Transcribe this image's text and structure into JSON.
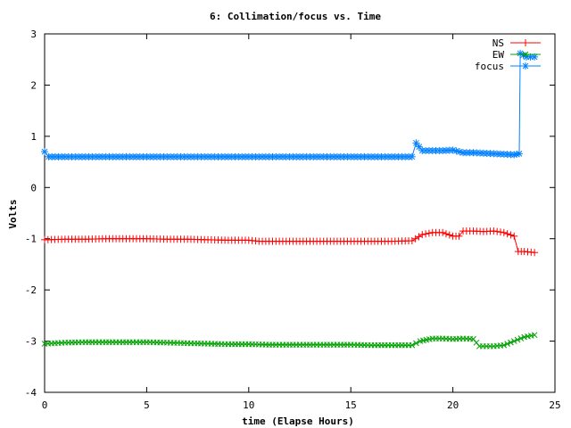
{
  "chart_data": {
    "type": "line",
    "title": "6: Collimation/focus vs. Time",
    "xlabel": "time (Elapse Hours)",
    "ylabel": "Volts",
    "xlim": [
      0,
      25
    ],
    "ylim": [
      -4,
      3
    ],
    "xticks": [
      0,
      5,
      10,
      15,
      20,
      25
    ],
    "yticks": [
      -4,
      -3,
      -2,
      -1,
      0,
      1,
      2,
      3
    ],
    "grid": false,
    "legend_position": "top-right",
    "series": [
      {
        "name": "NS",
        "color": "#ff0000",
        "marker": "plus",
        "points": [
          [
            0,
            -1.02
          ],
          [
            1,
            -1.01
          ],
          [
            2,
            -1.01
          ],
          [
            3,
            -1.0
          ],
          [
            4,
            -1.0
          ],
          [
            5,
            -1.0
          ],
          [
            6,
            -1.01
          ],
          [
            7,
            -1.01
          ],
          [
            8,
            -1.02
          ],
          [
            9,
            -1.03
          ],
          [
            10,
            -1.03
          ],
          [
            10.5,
            -1.05
          ],
          [
            11,
            -1.05
          ],
          [
            12,
            -1.05
          ],
          [
            13,
            -1.05
          ],
          [
            14,
            -1.05
          ],
          [
            15,
            -1.05
          ],
          [
            16,
            -1.05
          ],
          [
            17,
            -1.05
          ],
          [
            18,
            -1.04
          ],
          [
            18.5,
            -0.92
          ],
          [
            19,
            -0.88
          ],
          [
            19.5,
            -0.88
          ],
          [
            20,
            -0.95
          ],
          [
            20.3,
            -0.95
          ],
          [
            20.5,
            -0.85
          ],
          [
            21,
            -0.85
          ],
          [
            21.5,
            -0.86
          ],
          [
            22,
            -0.85
          ],
          [
            22.5,
            -0.88
          ],
          [
            23,
            -0.95
          ],
          [
            23.2,
            -1.25
          ],
          [
            23.5,
            -1.25
          ],
          [
            24,
            -1.27
          ]
        ]
      },
      {
        "name": "EW",
        "color": "#00a000",
        "marker": "x",
        "points": [
          [
            0,
            -3.05
          ],
          [
            1,
            -3.03
          ],
          [
            2,
            -3.02
          ],
          [
            3,
            -3.02
          ],
          [
            4,
            -3.02
          ],
          [
            5,
            -3.02
          ],
          [
            6,
            -3.03
          ],
          [
            7,
            -3.04
          ],
          [
            8,
            -3.05
          ],
          [
            9,
            -3.06
          ],
          [
            10,
            -3.06
          ],
          [
            11,
            -3.07
          ],
          [
            12,
            -3.07
          ],
          [
            13,
            -3.07
          ],
          [
            14,
            -3.07
          ],
          [
            15,
            -3.07
          ],
          [
            16,
            -3.08
          ],
          [
            17,
            -3.08
          ],
          [
            18,
            -3.08
          ],
          [
            18.4,
            -3.0
          ],
          [
            19,
            -2.95
          ],
          [
            19.5,
            -2.95
          ],
          [
            20,
            -2.96
          ],
          [
            20.5,
            -2.95
          ],
          [
            21,
            -2.96
          ],
          [
            21.3,
            -3.1
          ],
          [
            22,
            -3.1
          ],
          [
            22.5,
            -3.08
          ],
          [
            23,
            -3.0
          ],
          [
            23.5,
            -2.92
          ],
          [
            24,
            -2.88
          ]
        ]
      },
      {
        "name": "focus",
        "color": "#0080ff",
        "marker": "star",
        "points": [
          [
            0,
            0.7
          ],
          [
            0.2,
            0.6
          ],
          [
            1,
            0.6
          ],
          [
            2,
            0.6
          ],
          [
            3,
            0.6
          ],
          [
            4,
            0.6
          ],
          [
            5,
            0.6
          ],
          [
            6,
            0.6
          ],
          [
            7,
            0.6
          ],
          [
            8,
            0.6
          ],
          [
            9,
            0.6
          ],
          [
            10,
            0.6
          ],
          [
            11,
            0.6
          ],
          [
            12,
            0.6
          ],
          [
            13,
            0.6
          ],
          [
            14,
            0.6
          ],
          [
            15,
            0.6
          ],
          [
            16,
            0.6
          ],
          [
            17,
            0.6
          ],
          [
            18,
            0.6
          ],
          [
            18.2,
            0.87
          ],
          [
            18.5,
            0.72
          ],
          [
            19,
            0.72
          ],
          [
            19.5,
            0.72
          ],
          [
            20,
            0.73
          ],
          [
            20.5,
            0.68
          ],
          [
            21,
            0.68
          ],
          [
            21.5,
            0.67
          ],
          [
            22,
            0.66
          ],
          [
            22.5,
            0.65
          ],
          [
            23,
            0.64
          ],
          [
            23.25,
            0.66
          ],
          [
            23.3,
            2.62
          ],
          [
            23.6,
            2.55
          ],
          [
            24,
            2.55
          ]
        ]
      }
    ]
  }
}
